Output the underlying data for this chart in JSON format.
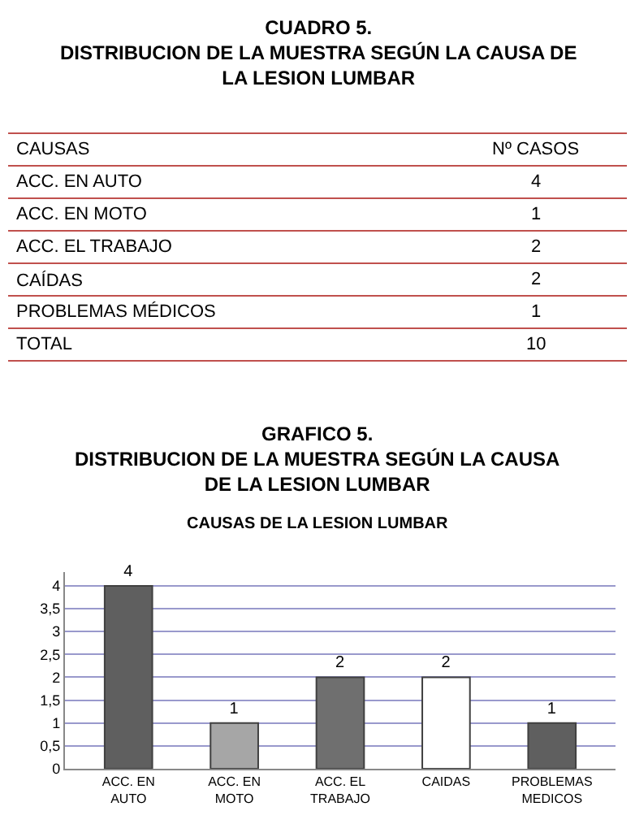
{
  "chart_data": [
    {
      "type": "other",
      "title": "CUADRO 5.\nDISTRIBUCION DE LA MUESTRA SEGÚN LA CAUSA DE\nLA LESION LUMBAR",
      "annotations": [
        "CAUSAS",
        "Nº CASOS",
        "ACC. EN AUTO",
        "4",
        "ACC. EN MOTO",
        "1",
        "ACC. EL TRABAJO",
        "2",
        "CAÍDAS",
        "2",
        "PROBLEMAS MÉDICOS",
        "1",
        "TOTAL",
        "10"
      ]
    },
    {
      "type": "bar",
      "title": "GRAFICO 5.\nDISTRIBUCION DE LA MUESTRA SEGÚN LA CAUSA\nDE LA LESION LUMBAR",
      "subtitle": "CAUSAS DE LA LESION LUMBAR",
      "categories": [
        "ACC. EN\nAUTO",
        "ACC. EN\nMOTO",
        "ACC. EL\nTRABAJO",
        "CAIDAS",
        "PROBLEMAS\nMEDICOS"
      ],
      "values": [
        4,
        1,
        2,
        2,
        1
      ],
      "colors": [
        "#5f5f5f",
        "#a6a6a6",
        "#6f6f6f",
        "#ffffff",
        "#5f5f5f"
      ],
      "ylim": [
        0,
        4.3
      ],
      "yticks": [
        0,
        {
          "value": 0.5,
          "label": "0,5"
        },
        1,
        {
          "value": 1.5,
          "label": "1,5"
        },
        2,
        {
          "value": 2.5,
          "label": "2,5"
        },
        3,
        {
          "value": 3.5,
          "label": "3,5"
        },
        4
      ],
      "grid": "y",
      "data_labels": true
    }
  ]
}
